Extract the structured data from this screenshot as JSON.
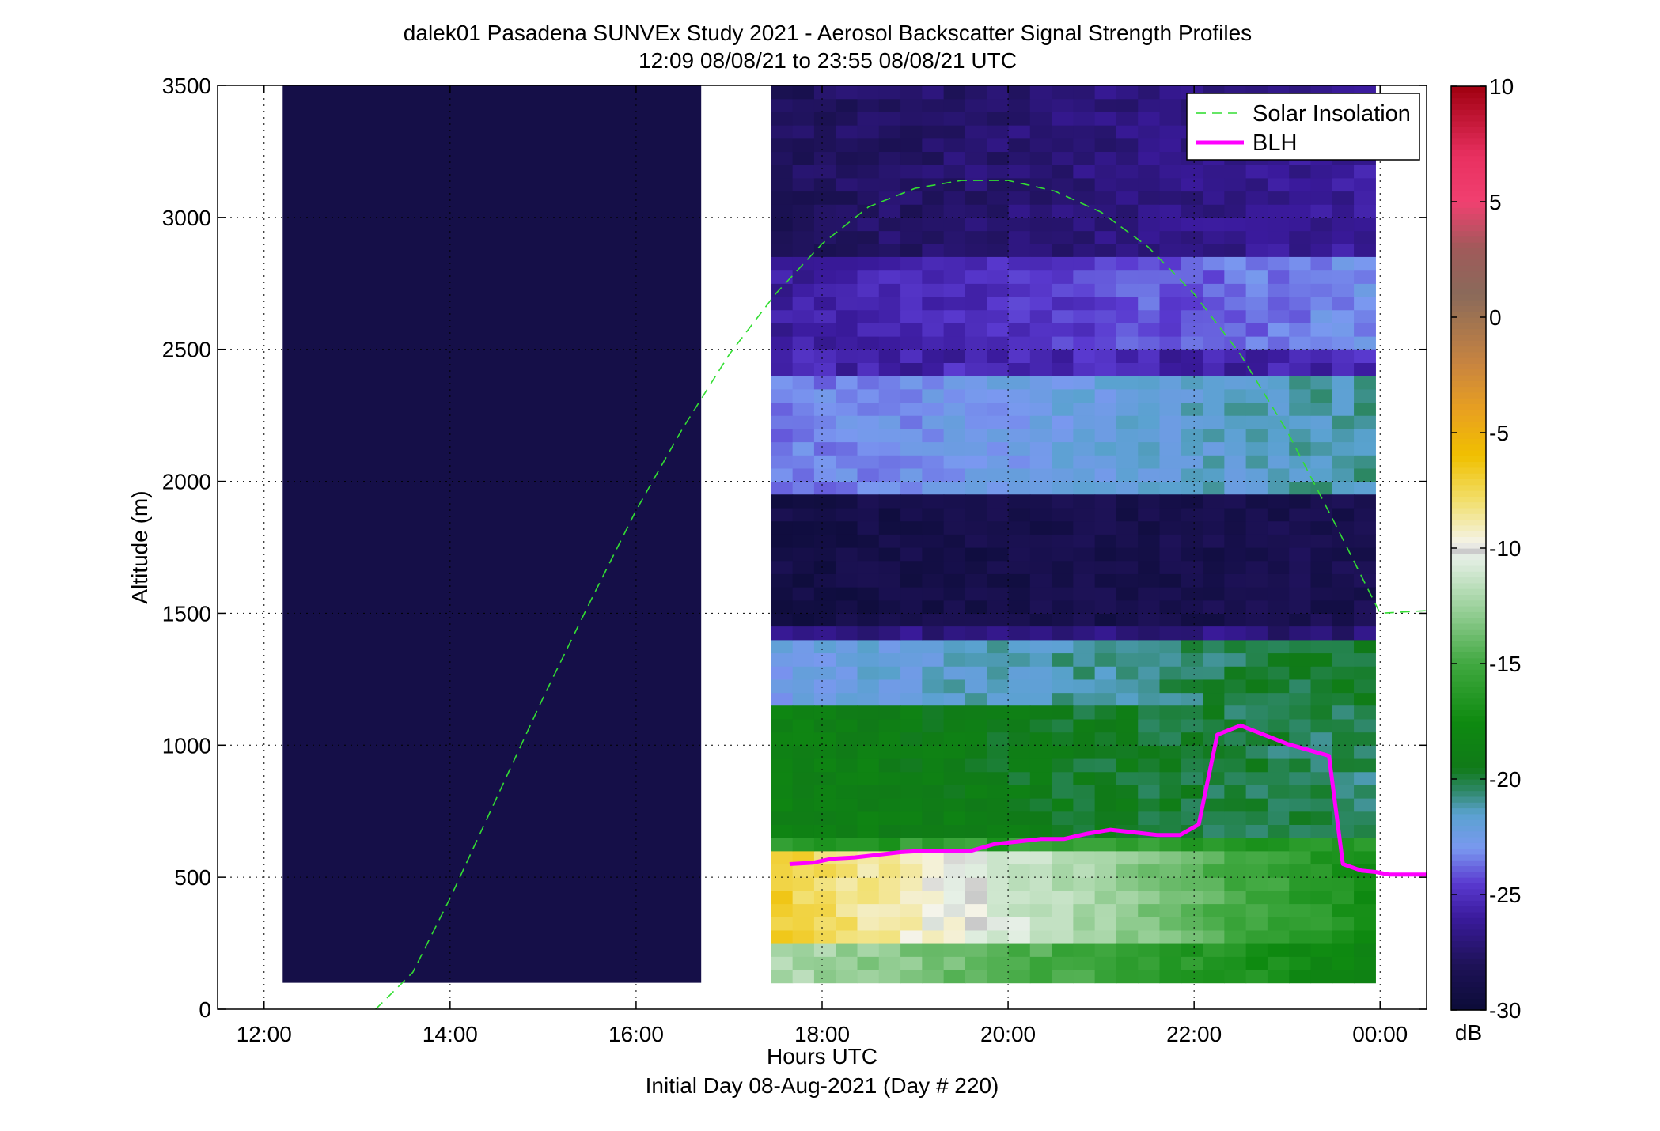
{
  "chart_data": {
    "type": "heatmap",
    "title": "dalek01 Pasadena SUNVEx Study 2021 - Aerosol Backscatter Signal Strength Profiles",
    "subtitle": "12:09 08/08/21 to 23:55 08/08/21  UTC",
    "xlabel": "Hours UTC",
    "xlabel2": "Initial Day 08-Aug-2021 (Day # 220)",
    "ylabel": "Altitude (m)",
    "xlim": [
      11.5,
      24.5
    ],
    "ylim": [
      0,
      3500
    ],
    "grid": true,
    "x_ticks": [
      {
        "value": 12,
        "label": "12:00"
      },
      {
        "value": 14,
        "label": "14:00"
      },
      {
        "value": 16,
        "label": "16:00"
      },
      {
        "value": 18,
        "label": "18:00"
      },
      {
        "value": 20,
        "label": "20:00"
      },
      {
        "value": 22,
        "label": "22:00"
      },
      {
        "value": 24,
        "label": "00:00"
      }
    ],
    "y_ticks": [
      {
        "value": 0,
        "label": "0"
      },
      {
        "value": 500,
        "label": "500"
      },
      {
        "value": 1000,
        "label": "1000"
      },
      {
        "value": 1500,
        "label": "1500"
      },
      {
        "value": 2000,
        "label": "2000"
      },
      {
        "value": 2500,
        "label": "2500"
      },
      {
        "value": 3000,
        "label": "3000"
      },
      {
        "value": 3500,
        "label": "3500"
      }
    ],
    "colorbar": {
      "label": "dB",
      "range": [
        -30,
        10
      ],
      "ticks": [
        {
          "value": 10,
          "label": "10"
        },
        {
          "value": 5,
          "label": "5"
        },
        {
          "value": 0,
          "label": "0"
        },
        {
          "value": -5,
          "label": "-5"
        },
        {
          "value": -10,
          "label": "-10"
        },
        {
          "value": -15,
          "label": "-15"
        },
        {
          "value": -20,
          "label": "-20"
        },
        {
          "value": -25,
          "label": "-25"
        },
        {
          "value": -30,
          "label": "-30"
        }
      ],
      "stops": [
        {
          "value": -30,
          "color": "#0c0c38"
        },
        {
          "value": -28,
          "color": "#1e1258"
        },
        {
          "value": -26,
          "color": "#3a1a9c"
        },
        {
          "value": -24.5,
          "color": "#5a3ad0"
        },
        {
          "value": -23,
          "color": "#7a98f0"
        },
        {
          "value": -21.5,
          "color": "#5aa2d0"
        },
        {
          "value": -20.5,
          "color": "#2e8868"
        },
        {
          "value": -19.5,
          "color": "#107a18"
        },
        {
          "value": -17.5,
          "color": "#0e8a10"
        },
        {
          "value": -15,
          "color": "#40a840"
        },
        {
          "value": -12.5,
          "color": "#9ed29e"
        },
        {
          "value": -10.4,
          "color": "#e6f0e6"
        },
        {
          "value": -10.1,
          "color": "#c8c8c8"
        },
        {
          "value": -9.8,
          "color": "#f4f4ec"
        },
        {
          "value": -8,
          "color": "#f2e070"
        },
        {
          "value": -6,
          "color": "#f0c000"
        },
        {
          "value": -4,
          "color": "#e8a020"
        },
        {
          "value": -2,
          "color": "#c88440"
        },
        {
          "value": 1,
          "color": "#8a6a5a"
        },
        {
          "value": 3,
          "color": "#a05a5a"
        },
        {
          "value": 5,
          "color": "#f04070"
        },
        {
          "value": 7,
          "color": "#e83060"
        },
        {
          "value": 10,
          "color": "#a00010"
        }
      ]
    },
    "heatmap": {
      "segment_1": {
        "x_range": [
          12.2,
          16.7
        ],
        "altitude_range": [
          100,
          3500
        ],
        "value_db": -29
      },
      "segment_2": {
        "x_range": [
          17.45,
          23.95
        ],
        "columns": 28,
        "row_height_m": 50,
        "profile_bands": [
          {
            "altitude_range": [
              2850,
              3500
            ],
            "db_start": -28,
            "db_end": -26
          },
          {
            "altitude_range": [
              2500,
              2850
            ],
            "db_start": -26,
            "db_end": -23
          },
          {
            "altitude_range": [
              1950,
              2400
            ],
            "db_start": -23.5,
            "db_end": -21
          },
          {
            "altitude_range": [
              1450,
              1950
            ],
            "db_start": -29,
            "db_end": -28.5
          },
          {
            "altitude_range": [
              1150,
              1400
            ],
            "db_start": -22.5,
            "db_end": -19.5
          },
          {
            "altitude_range": [
              650,
              1150
            ],
            "db_start": -18.5,
            "db_end": -20.5
          },
          {
            "altitude_range": [
              250,
              600
            ],
            "db_start": -7,
            "db_end": -17
          },
          {
            "altitude_range": [
              100,
              250
            ],
            "db_start": -12,
            "db_end": -18
          }
        ]
      }
    },
    "series": [
      {
        "name": "Solar Insolation",
        "color": "#33dd33",
        "style": "dashed",
        "x": [
          13.2,
          13.6,
          14.0,
          14.5,
          15.0,
          15.5,
          16.0,
          16.5,
          17.0,
          17.5,
          18.0,
          18.5,
          19.0,
          19.5,
          20.0,
          20.5,
          21.0,
          21.5,
          22.0,
          22.5,
          23.0,
          23.5,
          24.0,
          24.5
        ],
        "y": [
          0,
          140,
          420,
          800,
          1180,
          1540,
          1890,
          2200,
          2480,
          2710,
          2900,
          3040,
          3110,
          3140,
          3140,
          3100,
          3020,
          2890,
          2710,
          2480,
          2190,
          1850,
          1500,
          1510
        ]
      },
      {
        "name": "BLH",
        "color": "#ff00ff",
        "style": "solid",
        "x": [
          17.65,
          17.9,
          18.1,
          18.35,
          18.6,
          18.85,
          19.1,
          19.35,
          19.6,
          19.85,
          20.1,
          20.35,
          20.6,
          20.85,
          21.1,
          21.35,
          21.6,
          21.85,
          22.05,
          22.25,
          22.5,
          22.75,
          23.0,
          23.2,
          23.45,
          23.6,
          23.8,
          23.95,
          24.1,
          24.3,
          24.5
        ],
        "y": [
          550,
          555,
          570,
          575,
          585,
          595,
          600,
          600,
          600,
          625,
          635,
          645,
          645,
          665,
          680,
          670,
          660,
          660,
          700,
          1040,
          1075,
          1040,
          1005,
          985,
          960,
          550,
          525,
          520,
          510,
          510,
          510
        ]
      }
    ],
    "legend": {
      "placement": "top-right",
      "entries": [
        "Solar Insolation",
        "BLH"
      ]
    }
  }
}
